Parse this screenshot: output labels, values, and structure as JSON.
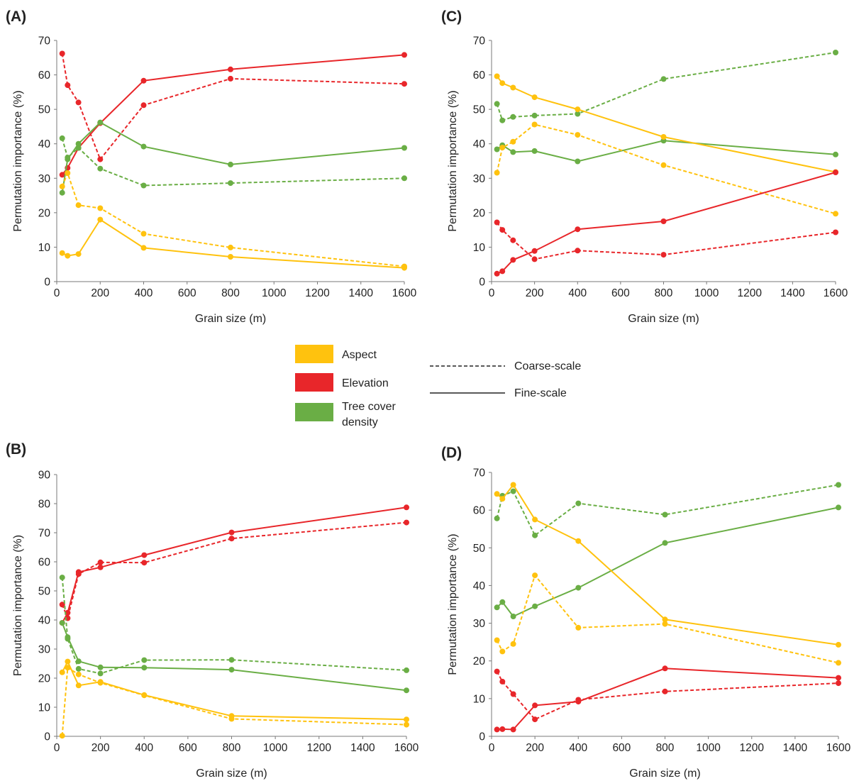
{
  "colors": {
    "aspect": "#FFC20E",
    "elevation": "#E8262A",
    "tree_cover_density": "#6AAE45"
  },
  "legend": {
    "variables": [
      {
        "key": "aspect",
        "label_lines": [
          "Aspect"
        ]
      },
      {
        "key": "elevation",
        "label_lines": [
          "Elevation"
        ]
      },
      {
        "key": "tree_cover_density",
        "label_lines": [
          "Tree cover",
          "density"
        ]
      }
    ],
    "line_styles": [
      {
        "key": "coarse",
        "label": "Coarse-scale",
        "dashed": true
      },
      {
        "key": "fine",
        "label": "Fine-scale",
        "dashed": false
      }
    ]
  },
  "chart_data": [
    {
      "panel": "(A)",
      "type": "line",
      "xlabel": "Grain size (m)",
      "ylabel": "Permutation importance (%)",
      "xlim": [
        0,
        1600
      ],
      "ylim": [
        0,
        70
      ],
      "xticks": [
        0,
        200,
        400,
        600,
        800,
        1000,
        1200,
        1400,
        1600
      ],
      "yticks": [
        0,
        10,
        20,
        30,
        40,
        50,
        60,
        70
      ],
      "x": [
        25,
        50,
        100,
        200,
        400,
        800,
        1600
      ],
      "series": [
        {
          "variable": "elevation",
          "scale": "coarse",
          "values": [
            66.2,
            57,
            52,
            35.5,
            51.2,
            58.9,
            57.4
          ]
        },
        {
          "variable": "elevation",
          "scale": "fine",
          "values": [
            31,
            33,
            38.8,
            46,
            58.3,
            61.6,
            65.8
          ]
        },
        {
          "variable": "tree_cover_density",
          "scale": "coarse",
          "values": [
            41.6,
            36,
            38.8,
            32.8,
            27.9,
            28.6,
            30
          ]
        },
        {
          "variable": "tree_cover_density",
          "scale": "fine",
          "values": [
            25.8,
            35.5,
            40,
            46.2,
            39.2,
            34,
            38.8
          ]
        },
        {
          "variable": "aspect",
          "scale": "coarse",
          "values": [
            27.6,
            31.5,
            22.2,
            21.3,
            13.9,
            9.9,
            4.4
          ]
        },
        {
          "variable": "aspect",
          "scale": "fine",
          "values": [
            8.3,
            7.5,
            8,
            18,
            9.8,
            7.2,
            4
          ]
        }
      ]
    },
    {
      "panel": "(C)",
      "type": "line",
      "xlabel": "Grain size (m)",
      "ylabel": "Permutation importance (%)",
      "xlim": [
        0,
        1600
      ],
      "ylim": [
        0,
        70
      ],
      "xticks": [
        0,
        200,
        400,
        600,
        800,
        1000,
        1200,
        1400,
        1600
      ],
      "yticks": [
        0,
        10,
        20,
        30,
        40,
        50,
        60,
        70
      ],
      "x": [
        25,
        50,
        100,
        200,
        400,
        800,
        1600
      ],
      "series": [
        {
          "variable": "tree_cover_density",
          "scale": "coarse",
          "values": [
            51.6,
            46.8,
            47.8,
            48.2,
            48.7,
            58.8,
            66.5
          ]
        },
        {
          "variable": "tree_cover_density",
          "scale": "fine",
          "values": [
            38.4,
            39.6,
            37.6,
            37.9,
            34.9,
            40.9,
            36.9
          ]
        },
        {
          "variable": "aspect",
          "scale": "fine",
          "values": [
            59.6,
            57.6,
            56.3,
            53.5,
            50,
            42,
            31.8
          ]
        },
        {
          "variable": "aspect",
          "scale": "coarse",
          "values": [
            31.6,
            38.9,
            40.6,
            45.6,
            42.6,
            33.8,
            19.7
          ]
        },
        {
          "variable": "elevation",
          "scale": "coarse",
          "values": [
            17.2,
            15,
            12,
            6.5,
            9,
            7.8,
            14.3
          ]
        },
        {
          "variable": "elevation",
          "scale": "fine",
          "values": [
            2.3,
            3,
            6.3,
            8.9,
            15.2,
            17.5,
            31.7
          ]
        }
      ]
    },
    {
      "panel": "(B)",
      "type": "line",
      "xlabel": "Grain size (m)",
      "ylabel": "Permutation importance (%)",
      "xlim": [
        0,
        1600
      ],
      "ylim": [
        0,
        90
      ],
      "xticks": [
        0,
        200,
        400,
        600,
        800,
        1000,
        1200,
        1400,
        1600
      ],
      "yticks": [
        0,
        10,
        20,
        30,
        40,
        50,
        60,
        70,
        80,
        90
      ],
      "x": [
        25,
        50,
        100,
        200,
        400,
        800,
        1600
      ],
      "series": [
        {
          "variable": "elevation",
          "scale": "coarse",
          "values": [
            45.3,
            40.6,
            55.8,
            59.8,
            59.7,
            68,
            73.5
          ]
        },
        {
          "variable": "elevation",
          "scale": "fine",
          "values": [
            39,
            42.5,
            56.5,
            58.1,
            62.3,
            70.1,
            78.7
          ]
        },
        {
          "variable": "tree_cover_density",
          "scale": "coarse",
          "values": [
            54.6,
            33.5,
            23.2,
            21.6,
            26.2,
            26.3,
            22.7
          ]
        },
        {
          "variable": "tree_cover_density",
          "scale": "fine",
          "values": [
            39,
            34.1,
            25.8,
            23.7,
            23.6,
            22.9,
            15.8
          ]
        },
        {
          "variable": "aspect",
          "scale": "coarse",
          "values": [
            0.2,
            23.6,
            21.3,
            18.4,
            14.1,
            6,
            4
          ]
        },
        {
          "variable": "aspect",
          "scale": "fine",
          "values": [
            22,
            25.7,
            17.5,
            18.7,
            14.2,
            7,
            5.8
          ]
        }
      ]
    },
    {
      "panel": "(D)",
      "type": "line",
      "xlabel": "Grain size (m)",
      "ylabel": "Permutation importance (%)",
      "xlim": [
        0,
        1600
      ],
      "ylim": [
        0,
        70
      ],
      "xticks": [
        0,
        200,
        400,
        600,
        800,
        1000,
        1200,
        1400,
        1600
      ],
      "yticks": [
        0,
        10,
        20,
        30,
        40,
        50,
        60,
        70
      ],
      "x": [
        25,
        50,
        100,
        200,
        400,
        800,
        1600
      ],
      "series": [
        {
          "variable": "tree_cover_density",
          "scale": "coarse",
          "values": [
            57.8,
            63.8,
            65,
            53.3,
            61.8,
            58.8,
            66.7
          ]
        },
        {
          "variable": "tree_cover_density",
          "scale": "fine",
          "values": [
            34.2,
            35.6,
            31.8,
            34.5,
            39.4,
            51.3,
            60.7
          ]
        },
        {
          "variable": "aspect",
          "scale": "fine",
          "values": [
            64.3,
            63,
            66.7,
            57.5,
            51.8,
            31,
            24.3
          ]
        },
        {
          "variable": "aspect",
          "scale": "coarse",
          "values": [
            25.5,
            22.5,
            24.5,
            42.7,
            28.8,
            29.8,
            19.5
          ]
        },
        {
          "variable": "elevation",
          "scale": "coarse",
          "values": [
            17.2,
            14.5,
            11.2,
            4.5,
            9.7,
            11.9,
            14.1
          ]
        },
        {
          "variable": "elevation",
          "scale": "fine",
          "values": [
            1.8,
            1.9,
            1.8,
            8.2,
            9.2,
            18,
            15.5
          ]
        }
      ]
    }
  ]
}
